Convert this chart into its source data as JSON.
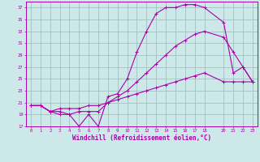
{
  "xlabel": "Windchill (Refroidissement éolien,°C)",
  "bg_color": "#cce8e8",
  "line_color": "#aa00aa",
  "grid_color": "#99bbbb",
  "line1_x": [
    0,
    1,
    2,
    3,
    4,
    5,
    6,
    7,
    8,
    9,
    10,
    11,
    12,
    13,
    14,
    15,
    16,
    17,
    18,
    20,
    21,
    22,
    23
  ],
  "line1_y": [
    20.5,
    20.5,
    19.5,
    19.0,
    19.0,
    17.0,
    19.0,
    17.0,
    22.0,
    22.5,
    25.0,
    29.5,
    33.0,
    36.0,
    37.0,
    37.0,
    37.5,
    37.5,
    37.0,
    34.5,
    26.0,
    27.0,
    24.5
  ],
  "line2_x": [
    0,
    1,
    2,
    3,
    4,
    5,
    6,
    7,
    8,
    9,
    10,
    11,
    12,
    13,
    14,
    15,
    16,
    17,
    18,
    20,
    21,
    22,
    23
  ],
  "line2_y": [
    20.5,
    20.5,
    19.5,
    19.5,
    19.0,
    19.5,
    19.5,
    19.5,
    21.0,
    22.0,
    23.0,
    24.5,
    26.0,
    27.5,
    29.0,
    30.5,
    31.5,
    32.5,
    33.0,
    32.0,
    29.5,
    27.0,
    24.5
  ],
  "line3_x": [
    0,
    1,
    2,
    3,
    4,
    5,
    6,
    7,
    8,
    9,
    10,
    11,
    12,
    13,
    14,
    15,
    16,
    17,
    18,
    20,
    21,
    22,
    23
  ],
  "line3_y": [
    20.5,
    20.5,
    19.5,
    20.0,
    20.0,
    20.0,
    20.5,
    20.5,
    21.0,
    21.5,
    22.0,
    22.5,
    23.0,
    23.5,
    24.0,
    24.5,
    25.0,
    25.5,
    26.0,
    24.5,
    24.5,
    24.5,
    24.5
  ],
  "xtick_vals": [
    0,
    1,
    2,
    3,
    4,
    5,
    6,
    7,
    8,
    9,
    10,
    11,
    12,
    13,
    14,
    15,
    16,
    17,
    18,
    20,
    21,
    22,
    23
  ],
  "xtick_labels": [
    "0",
    "1",
    "2",
    "3",
    "4",
    "5",
    "6",
    "7",
    "8",
    "9",
    "10",
    "11",
    "12",
    "13",
    "14",
    "15",
    "16",
    "17",
    "18",
    "20",
    "21",
    "22",
    "23"
  ],
  "xlim": [
    -0.5,
    23.5
  ],
  "ylim": [
    17,
    38
  ],
  "yticks": [
    17,
    19,
    21,
    23,
    25,
    27,
    29,
    31,
    33,
    35,
    37
  ],
  "marker_size": 2.5,
  "lw": 0.8,
  "tick_fontsize": 4.0,
  "xlabel_fontsize": 5.5
}
